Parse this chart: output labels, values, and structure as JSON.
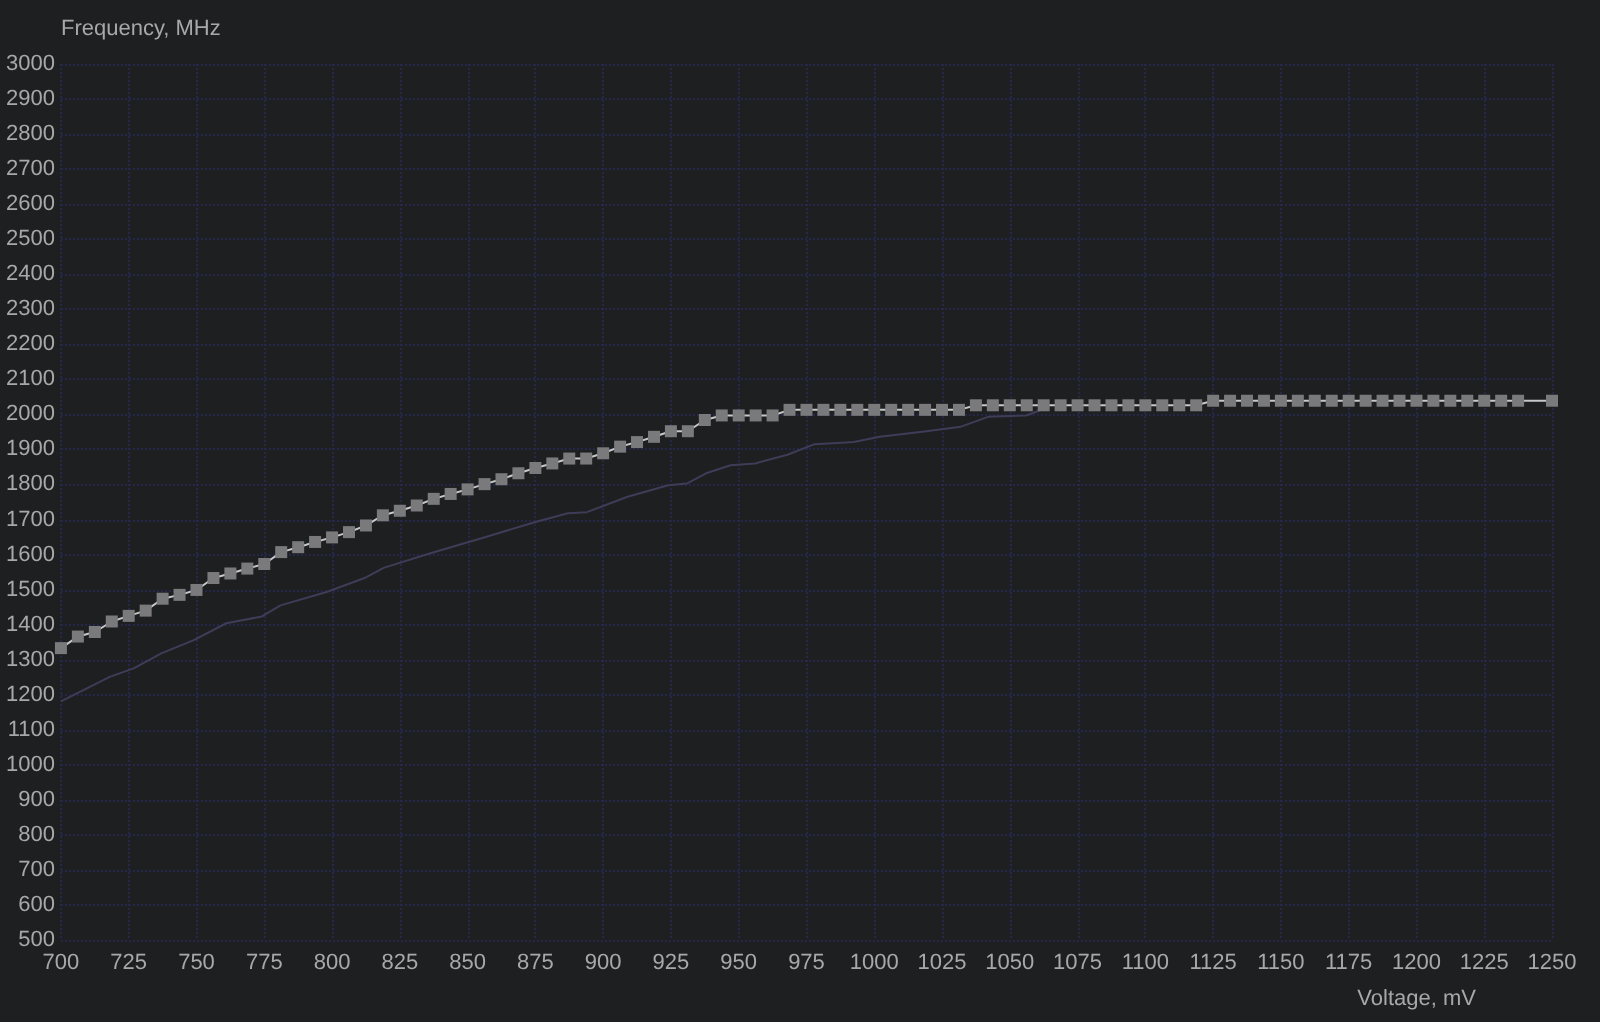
{
  "chart_data": {
    "type": "line",
    "xlabel": "Voltage, mV",
    "ylabel": "Frequency, MHz",
    "xlim": [
      700,
      1250
    ],
    "xticks": [
      700,
      725,
      750,
      775,
      800,
      825,
      850,
      875,
      900,
      925,
      950,
      975,
      1000,
      1025,
      1050,
      1075,
      1100,
      1125,
      1150,
      1175,
      1200,
      1225,
      1250
    ],
    "ylim": [
      500,
      3000
    ],
    "yticks": [
      500,
      600,
      700,
      800,
      900,
      1000,
      1100,
      1200,
      1300,
      1400,
      1500,
      1600,
      1700,
      1800,
      1900,
      2000,
      2100,
      2200,
      2300,
      2400,
      2500,
      2600,
      2700,
      2800,
      2900,
      3000
    ],
    "grid": true,
    "series": [
      {
        "color": "#3f3c58",
        "marker": "none",
        "x": [
          700,
          718,
          727,
          737,
          749,
          761,
          774,
          781,
          798,
          812,
          819,
          836,
          857,
          875,
          887,
          894,
          909,
          924,
          931,
          938,
          947,
          956,
          968,
          978,
          988,
          992.5,
          1002,
          1017,
          1032,
          1042,
          1056,
          1061
        ],
        "values": [
          1181,
          1251,
          1276,
          1318,
          1356,
          1404,
          1423,
          1455,
          1493,
          1533,
          1562,
          1603,
          1651,
          1693,
          1718,
          1721,
          1765,
          1798,
          1803,
          1832,
          1855,
          1860,
          1885,
          1915,
          1919,
          1921,
          1936,
          1950,
          1965,
          1993,
          1997,
          2011
        ]
      },
      {
        "color": "#c8c8c8",
        "marker": "square",
        "x": [
          700,
          706.25,
          712.5,
          718.75,
          725,
          731.25,
          737.5,
          743.75,
          750,
          756.25,
          762.5,
          768.75,
          775,
          781.25,
          787.5,
          793.75,
          800,
          806.25,
          812.5,
          818.75,
          825,
          831.25,
          837.5,
          843.75,
          850,
          856.25,
          862.5,
          868.75,
          875,
          881.25,
          887.5,
          893.75,
          900,
          906.25,
          912.5,
          918.75,
          925,
          931.25,
          937.5,
          943.75,
          950,
          956.25,
          962.5,
          968.75,
          975,
          981.25,
          987.5,
          993.75,
          1000,
          1006.25,
          1012.5,
          1018.75,
          1025,
          1031.25,
          1037.5,
          1043.75,
          1050,
          1056.25,
          1062.5,
          1068.75,
          1075,
          1081.25,
          1087.5,
          1093.75,
          1100,
          1106.25,
          1112.5,
          1118.75,
          1125,
          1131.25,
          1137.5,
          1143.75,
          1150,
          1156.25,
          1162.5,
          1168.75,
          1175,
          1181.25,
          1187.5,
          1193.75,
          1200,
          1206.25,
          1212.5,
          1218.75,
          1225,
          1231.25,
          1237.5,
          1250
        ],
        "values": [
          1333,
          1366,
          1379,
          1409,
          1425,
          1440,
          1474,
          1485,
          1499,
          1533,
          1546,
          1560,
          1573,
          1607,
          1621,
          1636,
          1649,
          1664,
          1683,
          1712,
          1725,
          1740,
          1759,
          1773,
          1786,
          1801,
          1815,
          1832,
          1847,
          1860,
          1874,
          1874,
          1889,
          1908,
          1921,
          1936,
          1952,
          1952,
          1984,
          1997,
          1997,
          1997,
          1997,
          2013,
          2013,
          2013,
          2013,
          2013,
          2013,
          2013,
          2013,
          2013,
          2013,
          2013,
          2026,
          2026,
          2026,
          2026,
          2026,
          2026,
          2026,
          2026,
          2026,
          2026,
          2026,
          2026,
          2026,
          2026,
          2039,
          2039,
          2039,
          2039,
          2039,
          2039,
          2039,
          2039,
          2039,
          2039,
          2039,
          2039,
          2039,
          2039,
          2039,
          2039,
          2039,
          2039,
          2039,
          2039
        ]
      }
    ]
  }
}
